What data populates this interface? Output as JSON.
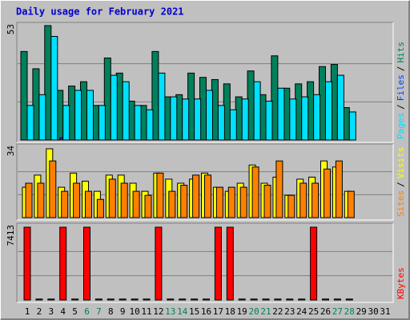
{
  "title": "Daily usage for February 2021",
  "legend_separator": "/",
  "chart_data": [
    {
      "type": "bar",
      "ylim": [
        0,
        53
      ],
      "yticks": [
        53
      ],
      "series": [
        {
          "name": "Hits",
          "color": "#00805c",
          "values": [
            41,
            33,
            53,
            23,
            25,
            27,
            16,
            38,
            31,
            18,
            16,
            41,
            20,
            21,
            31,
            29,
            28,
            26,
            20,
            32,
            21,
            39,
            24,
            26,
            27,
            34,
            35,
            15,
            null,
            null,
            null
          ]
        },
        {
          "name": "Files",
          "color": "#0040ff",
          "values": [
            0,
            0,
            0,
            1,
            0,
            0,
            0,
            0,
            0,
            0,
            0,
            0,
            0,
            0,
            0,
            0,
            0,
            0,
            0,
            0,
            0,
            0,
            0,
            0,
            0,
            0,
            0,
            0,
            null,
            null,
            null
          ]
        },
        {
          "name": "Pages",
          "color": "#00e0ff",
          "values": [
            16,
            21,
            48,
            16,
            23,
            23,
            16,
            30,
            27,
            16,
            14,
            31,
            20,
            19,
            19,
            23,
            16,
            14,
            19,
            27,
            18,
            24,
            19,
            20,
            21,
            27,
            30,
            13,
            null,
            null,
            null
          ]
        }
      ]
    },
    {
      "type": "bar",
      "ylim": [
        0,
        34
      ],
      "yticks": [
        34
      ],
      "series": [
        {
          "name": "Visits",
          "color": "#ffff00",
          "values": [
            15,
            21,
            34,
            15,
            22,
            18,
            13,
            21,
            21,
            17,
            13,
            22,
            19,
            17,
            19,
            22,
            15,
            13,
            17,
            26,
            17,
            20,
            11,
            19,
            20,
            28,
            25,
            13,
            null,
            null,
            null
          ]
        },
        {
          "name": "Sites",
          "color": "#ff8000",
          "values": [
            17,
            17,
            28,
            13,
            17,
            13,
            9,
            19,
            17,
            13,
            11,
            22,
            13,
            16,
            21,
            21,
            15,
            15,
            15,
            25,
            16,
            28,
            11,
            17,
            17,
            24,
            28,
            13,
            null,
            null,
            null
          ]
        }
      ]
    },
    {
      "type": "bar",
      "ylim": [
        0,
        7413
      ],
      "yticks": [
        7413
      ],
      "categories": [
        "1",
        "2",
        "3",
        "4",
        "5",
        "6",
        "7",
        "8",
        "9",
        "10",
        "11",
        "12",
        "13",
        "14",
        "15",
        "16",
        "17",
        "18",
        "19",
        "20",
        "21",
        "22",
        "23",
        "24",
        "25",
        "26",
        "27",
        "28",
        "29",
        "30",
        "31"
      ],
      "category_colors": [
        "#000",
        "#000",
        "#000",
        "#000",
        "#000",
        "#00805c",
        "#00805c",
        "#000",
        "#000",
        "#000",
        "#000",
        "#000",
        "#00805c",
        "#00805c",
        "#000",
        "#000",
        "#000",
        "#000",
        "#000",
        "#00805c",
        "#00805c",
        "#000",
        "#000",
        "#000",
        "#000",
        "#000",
        "#00805c",
        "#00805c",
        "#000",
        "#000",
        "#000"
      ],
      "series": [
        {
          "name": "KBytes",
          "color": "#ff0000",
          "values": [
            7413,
            100,
            100,
            7413,
            100,
            7413,
            100,
            100,
            100,
            100,
            100,
            7413,
            100,
            100,
            100,
            100,
            7413,
            7413,
            100,
            100,
            100,
            100,
            100,
            100,
            7413,
            100,
            100,
            100,
            null,
            null,
            null
          ]
        }
      ]
    }
  ]
}
